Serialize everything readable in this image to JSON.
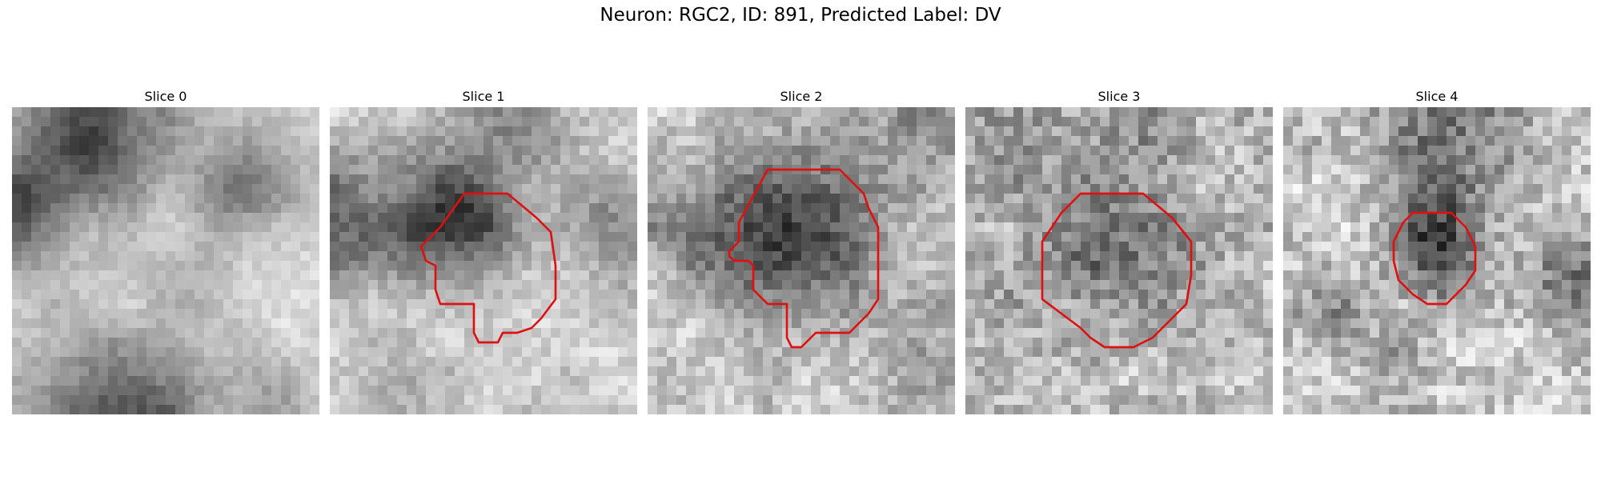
{
  "figure": {
    "title": "Neuron: RGC2, ID: 891, Predicted Label: DV",
    "outline_color": "#e01010"
  },
  "panels": [
    {
      "title": "Slice 0"
    },
    {
      "title": "Slice 1"
    },
    {
      "title": "Slice 2"
    },
    {
      "title": "Slice 3"
    },
    {
      "title": "Slice 4"
    }
  ]
}
